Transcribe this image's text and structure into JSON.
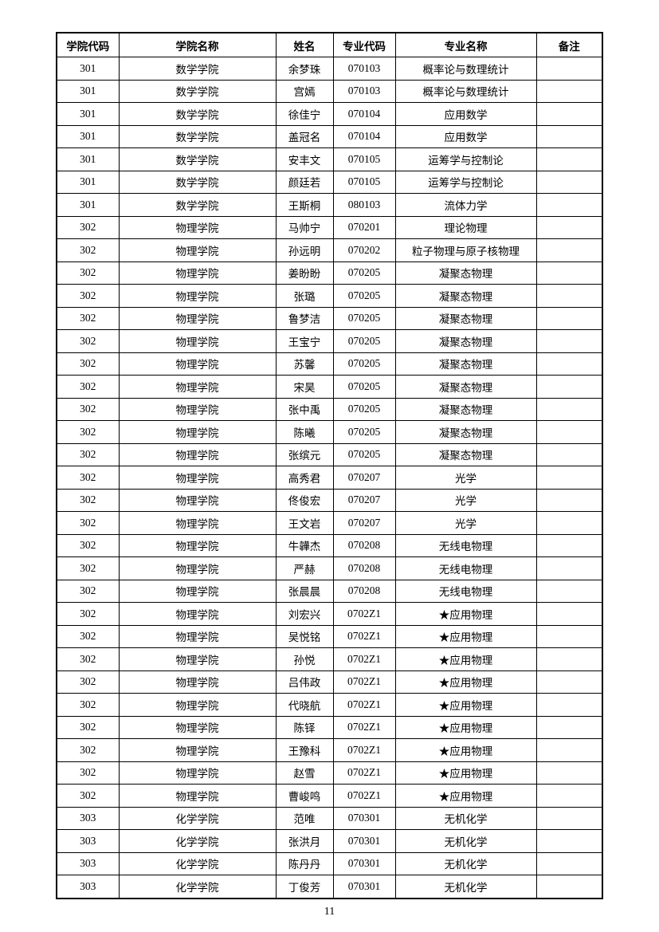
{
  "headers": [
    "学院代码",
    "学院名称",
    "姓名",
    "专业代码",
    "专业名称",
    "备注"
  ],
  "rows": [
    [
      "301",
      "数学学院",
      "余梦珠",
      "070103",
      "概率论与数理统计",
      ""
    ],
    [
      "301",
      "数学学院",
      "宫嫣",
      "070103",
      "概率论与数理统计",
      ""
    ],
    [
      "301",
      "数学学院",
      "徐佳宁",
      "070104",
      "应用数学",
      ""
    ],
    [
      "301",
      "数学学院",
      "盖冠名",
      "070104",
      "应用数学",
      ""
    ],
    [
      "301",
      "数学学院",
      "安丰文",
      "070105",
      "运筹学与控制论",
      ""
    ],
    [
      "301",
      "数学学院",
      "颜廷若",
      "070105",
      "运筹学与控制论",
      ""
    ],
    [
      "301",
      "数学学院",
      "王斯桐",
      "080103",
      "流体力学",
      ""
    ],
    [
      "302",
      "物理学院",
      "马帅宁",
      "070201",
      "理论物理",
      ""
    ],
    [
      "302",
      "物理学院",
      "孙远明",
      "070202",
      "粒子物理与原子核物理",
      ""
    ],
    [
      "302",
      "物理学院",
      "姜盼盼",
      "070205",
      "凝聚态物理",
      ""
    ],
    [
      "302",
      "物理学院",
      "张璐",
      "070205",
      "凝聚态物理",
      ""
    ],
    [
      "302",
      "物理学院",
      "鲁梦洁",
      "070205",
      "凝聚态物理",
      ""
    ],
    [
      "302",
      "物理学院",
      "王宝宁",
      "070205",
      "凝聚态物理",
      ""
    ],
    [
      "302",
      "物理学院",
      "苏馨",
      "070205",
      "凝聚态物理",
      ""
    ],
    [
      "302",
      "物理学院",
      "宋昊",
      "070205",
      "凝聚态物理",
      ""
    ],
    [
      "302",
      "物理学院",
      "张中禹",
      "070205",
      "凝聚态物理",
      ""
    ],
    [
      "302",
      "物理学院",
      "陈曦",
      "070205",
      "凝聚态物理",
      ""
    ],
    [
      "302",
      "物理学院",
      "张缤元",
      "070205",
      "凝聚态物理",
      ""
    ],
    [
      "302",
      "物理学院",
      "高秀君",
      "070207",
      "光学",
      ""
    ],
    [
      "302",
      "物理学院",
      "佟俊宏",
      "070207",
      "光学",
      ""
    ],
    [
      "302",
      "物理学院",
      "王文岩",
      "070207",
      "光学",
      ""
    ],
    [
      "302",
      "物理学院",
      "牛韡杰",
      "070208",
      "无线电物理",
      ""
    ],
    [
      "302",
      "物理学院",
      "严赫",
      "070208",
      "无线电物理",
      ""
    ],
    [
      "302",
      "物理学院",
      "张晨晨",
      "070208",
      "无线电物理",
      ""
    ],
    [
      "302",
      "物理学院",
      "刘宏兴",
      "0702Z1",
      "★应用物理",
      ""
    ],
    [
      "302",
      "物理学院",
      "吴悦铭",
      "0702Z1",
      "★应用物理",
      ""
    ],
    [
      "302",
      "物理学院",
      "孙悦",
      "0702Z1",
      "★应用物理",
      ""
    ],
    [
      "302",
      "物理学院",
      "吕伟政",
      "0702Z1",
      "★应用物理",
      ""
    ],
    [
      "302",
      "物理学院",
      "代晓航",
      "0702Z1",
      "★应用物理",
      ""
    ],
    [
      "302",
      "物理学院",
      "陈铎",
      "0702Z1",
      "★应用物理",
      ""
    ],
    [
      "302",
      "物理学院",
      "王豫科",
      "0702Z1",
      "★应用物理",
      ""
    ],
    [
      "302",
      "物理学院",
      "赵雪",
      "0702Z1",
      "★应用物理",
      ""
    ],
    [
      "302",
      "物理学院",
      "曹峻鸣",
      "0702Z1",
      "★应用物理",
      ""
    ],
    [
      "303",
      "化学学院",
      "范唯",
      "070301",
      "无机化学",
      ""
    ],
    [
      "303",
      "化学学院",
      "张洪月",
      "070301",
      "无机化学",
      ""
    ],
    [
      "303",
      "化学学院",
      "陈丹丹",
      "070301",
      "无机化学",
      ""
    ],
    [
      "303",
      "化学学院",
      "丁俊芳",
      "070301",
      "无机化学",
      ""
    ]
  ],
  "page_number": "11"
}
